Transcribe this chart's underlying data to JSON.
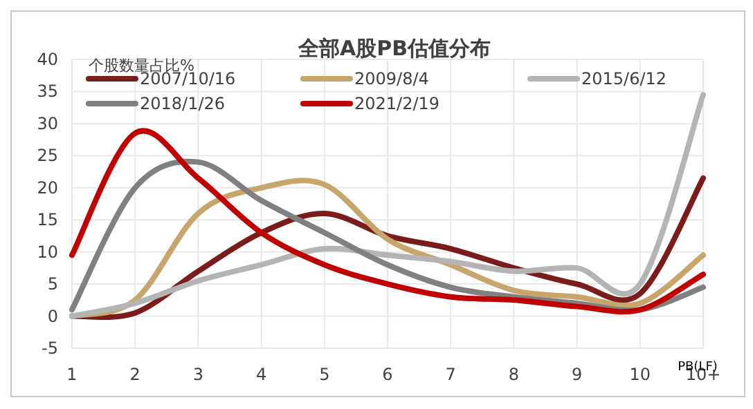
{
  "chart_data": {
    "type": "line",
    "title": "全部A股PB估值分布",
    "ylabel": "个股数量占比%",
    "xlabel": "PB(LF)",
    "categories": [
      "1",
      "2",
      "3",
      "4",
      "5",
      "6",
      "7",
      "8",
      "9",
      "10",
      "10+"
    ],
    "series": [
      {
        "name": "2007/10/16",
        "color": "#7b1c1c",
        "values": [
          0,
          0.5,
          7,
          13,
          16,
          12.5,
          10.5,
          7.5,
          5,
          3.5,
          21.5
        ]
      },
      {
        "name": "2009/8/4",
        "color": "#c8a56a",
        "values": [
          0,
          2.5,
          16,
          20,
          20.5,
          12,
          8,
          4,
          3,
          2,
          9.5
        ]
      },
      {
        "name": "2015/6/12",
        "color": "#b4b4b4",
        "values": [
          0,
          2,
          5.5,
          8,
          10.5,
          9.5,
          8.5,
          7,
          7.5,
          5,
          34.5
        ]
      },
      {
        "name": "2018/1/26",
        "color": "#808080",
        "values": [
          1,
          20,
          24,
          18,
          13,
          8,
          4.5,
          3,
          2,
          1,
          4.5
        ]
      },
      {
        "name": "2021/2/19",
        "color": "#c00000",
        "values": [
          9.5,
          28.5,
          21.5,
          13,
          8,
          5,
          3,
          2.5,
          1.5,
          1,
          6.5
        ]
      }
    ],
    "ylim": [
      -5,
      40
    ],
    "yticks": [
      -5,
      0,
      5,
      10,
      15,
      20,
      25,
      30,
      35,
      40
    ],
    "grid": true,
    "legend": "top",
    "line_style": "solid"
  }
}
